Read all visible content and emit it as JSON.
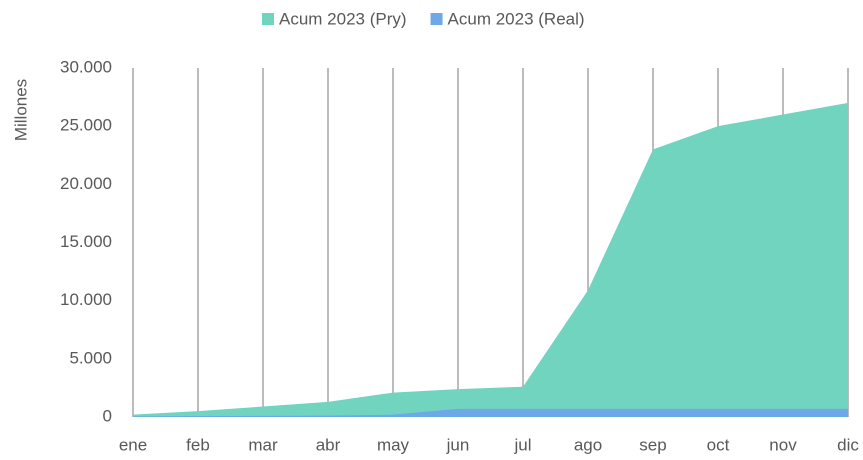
{
  "chart_data": {
    "type": "area",
    "y_label": "Millones",
    "categories": [
      "ene",
      "feb",
      "mar",
      "abr",
      "may",
      "jun",
      "jul",
      "ago",
      "sep",
      "oct",
      "nov",
      "dic"
    ],
    "series": [
      {
        "name": "Acum 2023 (Pry)",
        "color": "#70d4bf",
        "values": [
          200,
          500,
          900,
          1300,
          2100,
          2400,
          2600,
          10900,
          23000,
          25000,
          26000,
          27000
        ]
      },
      {
        "name": "Acum 2023 (Real)",
        "color": "#6ea8e8",
        "values": [
          50,
          80,
          100,
          120,
          200,
          700,
          700,
          700,
          700,
          700,
          700,
          700
        ]
      }
    ],
    "ylim": [
      0,
      30000
    ],
    "yticks": [
      0,
      {
        "value": 5000,
        "label": "5.000"
      },
      {
        "value": 10000,
        "label": "10.000"
      },
      {
        "value": 15000,
        "label": "15.000"
      },
      {
        "value": 20000,
        "label": "20.000"
      },
      {
        "value": 25000,
        "label": "25.000"
      },
      {
        "value": 30000,
        "label": "30.000"
      }
    ],
    "grid": true,
    "legend": "top"
  }
}
